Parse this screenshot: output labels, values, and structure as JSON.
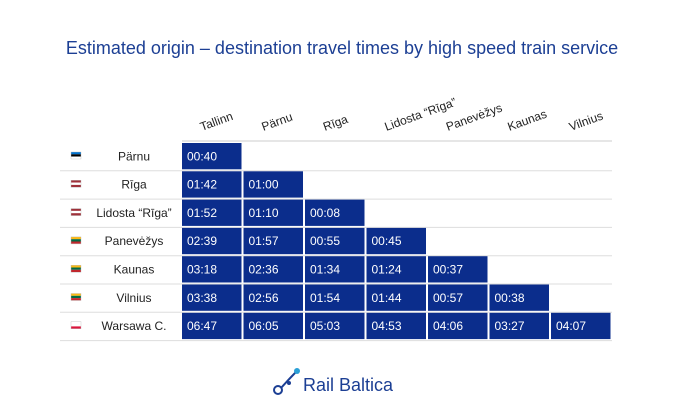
{
  "title": "Estimated origin – destination travel times by high speed train service",
  "table": {
    "columns": [
      "Tallinn",
      "Pärnu",
      "Rīga",
      "Lidosta “Rīga”",
      "Panevėžys",
      "Kaunas",
      "Vilnius"
    ],
    "rows": [
      {
        "label": "Pärnu",
        "cells": [
          "00:40"
        ]
      },
      {
        "label": "Rīga",
        "cells": [
          "01:42",
          "01:00"
        ]
      },
      {
        "label": "Lidosta “Rīga”",
        "cells": [
          "01:52",
          "01:10",
          "00:08"
        ]
      },
      {
        "label": "Panevėžys",
        "cells": [
          "02:39",
          "01:57",
          "00:55",
          "00:45"
        ]
      },
      {
        "label": "Kaunas",
        "cells": [
          "03:18",
          "02:36",
          "01:34",
          "01:24",
          "00:37"
        ]
      },
      {
        "label": "Vilnius",
        "cells": [
          "03:38",
          "02:56",
          "01:54",
          "01:44",
          "00:57",
          "00:38"
        ]
      },
      {
        "label": "Warsawa C.",
        "cells": [
          "06:47",
          "06:05",
          "05:03",
          "04:53",
          "04:06",
          "03:27",
          "04:07"
        ]
      }
    ]
  },
  "logo": "Rail Baltica"
}
